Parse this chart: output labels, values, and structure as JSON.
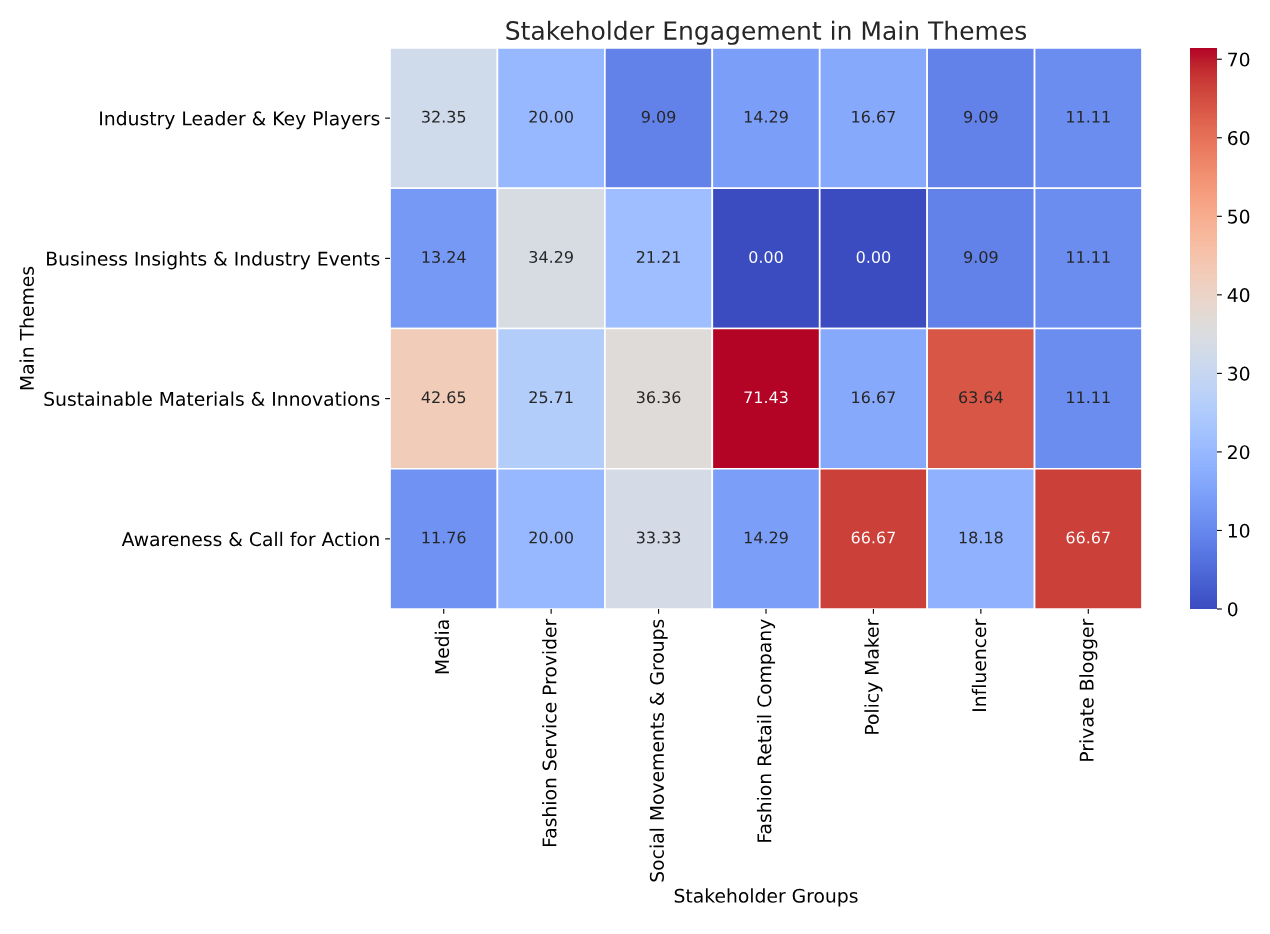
{
  "chart_data": {
    "type": "heatmap",
    "title": "Stakeholder Engagement in Main Themes",
    "xlabel": "Stakeholder Groups",
    "ylabel": "Main Themes",
    "categories": [
      "Media",
      "Fashion Service Provider",
      "Social Movements & Groups",
      "Fashion Retail Company",
      "Policy Maker",
      "Influencer",
      "Private Blogger"
    ],
    "y_categories": [
      "Industry Leader & Key Players",
      "Business Insights & Industry Events",
      "Sustainable Materials & Innovations",
      "Awareness & Call for Action"
    ],
    "cells": [
      [
        32.35,
        20.0,
        9.09,
        14.29,
        16.67,
        9.09,
        11.11
      ],
      [
        13.24,
        34.29,
        21.21,
        0.0,
        0.0,
        9.09,
        11.11
      ],
      [
        42.65,
        25.71,
        36.36,
        71.43,
        16.67,
        63.64,
        11.11
      ],
      [
        11.76,
        20.0,
        33.33,
        14.29,
        66.67,
        18.18,
        66.67
      ]
    ],
    "cell_labels": [
      [
        "32.35",
        "20.00",
        "9.09",
        "14.29",
        "16.67",
        "9.09",
        "11.11"
      ],
      [
        "13.24",
        "34.29",
        "21.21",
        "0.00",
        "0.00",
        "9.09",
        "11.11"
      ],
      [
        "42.65",
        "25.71",
        "36.36",
        "71.43",
        "16.67",
        "63.64",
        "11.11"
      ],
      [
        "11.76",
        "20.00",
        "33.33",
        "14.29",
        "66.67",
        "18.18",
        "66.67"
      ]
    ],
    "clim": [
      0,
      71.43
    ],
    "cticks": [
      0,
      10,
      20,
      30,
      40,
      50,
      60,
      70
    ]
  }
}
